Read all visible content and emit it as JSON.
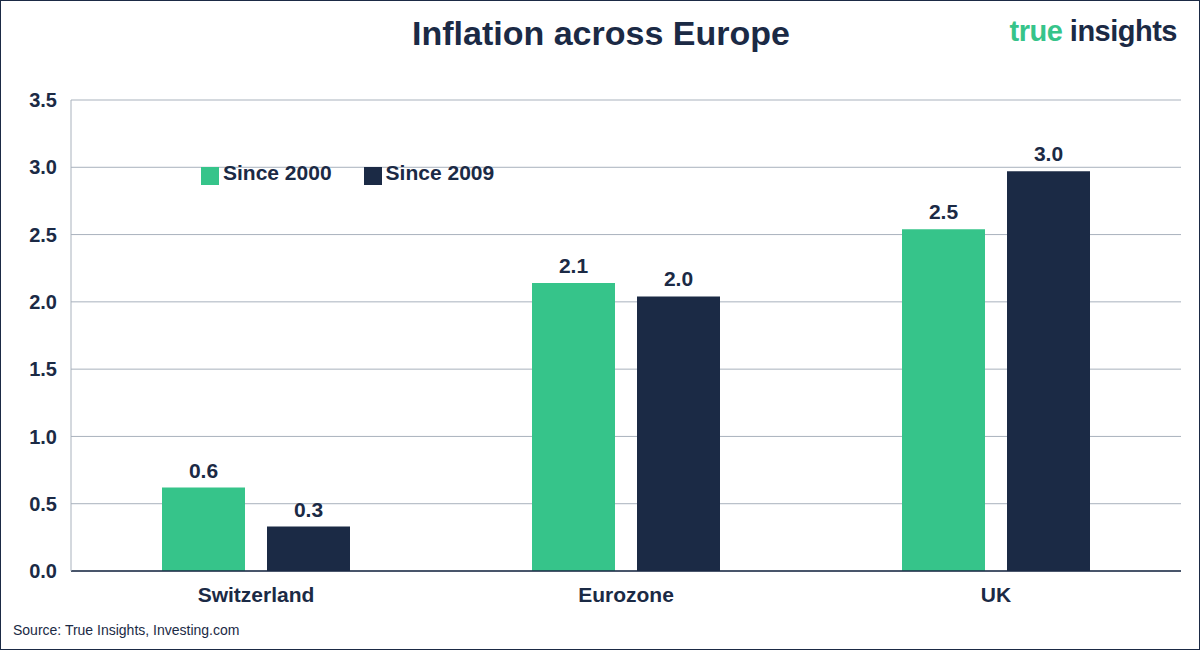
{
  "chart_data": {
    "type": "bar",
    "title": "Inflation across Europe",
    "logo": "true insights",
    "source": "Source: True Insights, Investing.com",
    "categories": [
      "Switzerland",
      "Eurozone",
      "UK"
    ],
    "series": [
      {
        "name": "Since 2000",
        "color": "#36c48a",
        "values": [
          0.62,
          2.14,
          2.54
        ],
        "value_labels": [
          "0.6",
          "2.1",
          "2.5"
        ]
      },
      {
        "name": "Since 2009",
        "color": "#1b2a45",
        "values": [
          0.33,
          2.04,
          2.97
        ],
        "value_labels": [
          "0.3",
          "2.0",
          "3.0"
        ]
      }
    ],
    "ylim": [
      0,
      3.5
    ],
    "yticks": [
      {
        "value": 0,
        "label": "0.0"
      },
      0.5,
      {
        "value": 1,
        "label": "1.0"
      },
      1.5,
      {
        "value": 2,
        "label": "2.0"
      },
      2.5,
      {
        "value": 3,
        "label": "3.0"
      },
      3.5
    ],
    "grid": true,
    "legend": "upper left",
    "data_labels": true
  }
}
